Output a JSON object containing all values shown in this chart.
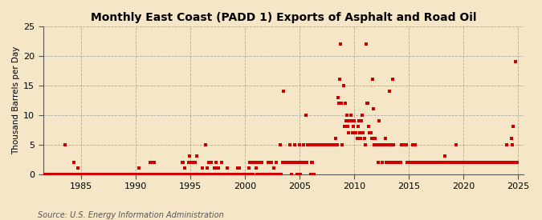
{
  "title": "Monthly East Coast (PADD 1) Exports of Asphalt and Road Oil",
  "ylabel": "Thousand Barrels per Day",
  "source": "Source: U.S. Energy Information Administration",
  "background_color": "#f5e6c8",
  "plot_background_color": "#f5e6c8",
  "marker_color": "#cc0000",
  "marker_size": 5,
  "xlim": [
    1981.5,
    2025.5
  ],
  "ylim": [
    0,
    25
  ],
  "yticks": [
    0,
    5,
    10,
    15,
    20,
    25
  ],
  "xticks": [
    1985,
    1990,
    1995,
    2000,
    2005,
    2010,
    2015,
    2020,
    2025
  ],
  "data": [
    [
      1981.583,
      0
    ],
    [
      1981.667,
      0
    ],
    [
      1981.75,
      0
    ],
    [
      1981.833,
      0
    ],
    [
      1981.917,
      0
    ],
    [
      1982.0,
      0
    ],
    [
      1982.083,
      0
    ],
    [
      1982.167,
      0
    ],
    [
      1982.25,
      0
    ],
    [
      1982.333,
      0
    ],
    [
      1982.417,
      0
    ],
    [
      1982.5,
      0
    ],
    [
      1982.583,
      0
    ],
    [
      1982.667,
      0
    ],
    [
      1982.75,
      0
    ],
    [
      1982.833,
      0
    ],
    [
      1982.917,
      0
    ],
    [
      1983.0,
      0
    ],
    [
      1983.083,
      0
    ],
    [
      1983.167,
      0
    ],
    [
      1983.25,
      0
    ],
    [
      1983.333,
      0
    ],
    [
      1983.417,
      0
    ],
    [
      1983.5,
      5
    ],
    [
      1983.583,
      0
    ],
    [
      1983.667,
      0
    ],
    [
      1983.75,
      0
    ],
    [
      1983.833,
      0
    ],
    [
      1983.917,
      0
    ],
    [
      1984.0,
      0
    ],
    [
      1984.083,
      0
    ],
    [
      1984.167,
      0
    ],
    [
      1984.25,
      0
    ],
    [
      1984.333,
      2
    ],
    [
      1984.417,
      0
    ],
    [
      1984.5,
      0
    ],
    [
      1984.583,
      0
    ],
    [
      1984.667,
      1
    ],
    [
      1984.75,
      0
    ],
    [
      1984.833,
      0
    ],
    [
      1984.917,
      0
    ],
    [
      1985.0,
      0
    ],
    [
      1985.083,
      0
    ],
    [
      1985.167,
      0
    ],
    [
      1985.25,
      0
    ],
    [
      1985.333,
      0
    ],
    [
      1985.417,
      0
    ],
    [
      1985.5,
      0
    ],
    [
      1985.583,
      0
    ],
    [
      1985.667,
      0
    ],
    [
      1985.75,
      0
    ],
    [
      1985.833,
      0
    ],
    [
      1985.917,
      0
    ],
    [
      1986.0,
      0
    ],
    [
      1986.083,
      0
    ],
    [
      1986.167,
      0
    ],
    [
      1986.25,
      0
    ],
    [
      1986.333,
      0
    ],
    [
      1986.417,
      0
    ],
    [
      1986.5,
      0
    ],
    [
      1986.583,
      0
    ],
    [
      1986.667,
      0
    ],
    [
      1986.75,
      0
    ],
    [
      1986.833,
      0
    ],
    [
      1986.917,
      0
    ],
    [
      1987.0,
      0
    ],
    [
      1987.083,
      0
    ],
    [
      1987.167,
      0
    ],
    [
      1987.25,
      0
    ],
    [
      1987.333,
      0
    ],
    [
      1987.417,
      0
    ],
    [
      1987.5,
      0
    ],
    [
      1987.583,
      0
    ],
    [
      1987.667,
      0
    ],
    [
      1987.75,
      0
    ],
    [
      1987.833,
      0
    ],
    [
      1987.917,
      0
    ],
    [
      1988.0,
      0
    ],
    [
      1988.083,
      0
    ],
    [
      1988.167,
      0
    ],
    [
      1988.25,
      0
    ],
    [
      1988.333,
      0
    ],
    [
      1988.417,
      0
    ],
    [
      1988.5,
      0
    ],
    [
      1988.583,
      0
    ],
    [
      1988.667,
      0
    ],
    [
      1988.75,
      0
    ],
    [
      1988.833,
      0
    ],
    [
      1988.917,
      0
    ],
    [
      1989.0,
      0
    ],
    [
      1989.083,
      0
    ],
    [
      1989.167,
      0
    ],
    [
      1989.25,
      0
    ],
    [
      1989.333,
      0
    ],
    [
      1989.417,
      0
    ],
    [
      1989.5,
      0
    ],
    [
      1989.583,
      0
    ],
    [
      1989.667,
      0
    ],
    [
      1989.75,
      0
    ],
    [
      1989.833,
      0
    ],
    [
      1989.917,
      0
    ],
    [
      1990.0,
      0
    ],
    [
      1990.083,
      0
    ],
    [
      1990.167,
      0
    ],
    [
      1990.25,
      1
    ],
    [
      1990.333,
      0
    ],
    [
      1990.417,
      0
    ],
    [
      1990.5,
      0
    ],
    [
      1990.583,
      0
    ],
    [
      1990.667,
      0
    ],
    [
      1990.75,
      0
    ],
    [
      1990.833,
      0
    ],
    [
      1990.917,
      0
    ],
    [
      1991.0,
      0
    ],
    [
      1991.083,
      0
    ],
    [
      1991.167,
      0
    ],
    [
      1991.25,
      0
    ],
    [
      1991.333,
      2
    ],
    [
      1991.417,
      0
    ],
    [
      1991.5,
      0
    ],
    [
      1991.583,
      2
    ],
    [
      1991.667,
      2
    ],
    [
      1991.75,
      0
    ],
    [
      1991.833,
      0
    ],
    [
      1991.917,
      0
    ],
    [
      1992.0,
      0
    ],
    [
      1992.083,
      0
    ],
    [
      1992.167,
      0
    ],
    [
      1992.25,
      0
    ],
    [
      1992.333,
      0
    ],
    [
      1992.417,
      0
    ],
    [
      1992.5,
      0
    ],
    [
      1992.583,
      0
    ],
    [
      1992.667,
      0
    ],
    [
      1992.75,
      0
    ],
    [
      1992.833,
      0
    ],
    [
      1992.917,
      0
    ],
    [
      1993.0,
      0
    ],
    [
      1993.083,
      0
    ],
    [
      1993.167,
      0
    ],
    [
      1993.25,
      0
    ],
    [
      1993.333,
      0
    ],
    [
      1993.417,
      0
    ],
    [
      1993.5,
      0
    ],
    [
      1993.583,
      0
    ],
    [
      1993.667,
      0
    ],
    [
      1993.75,
      0
    ],
    [
      1993.833,
      0
    ],
    [
      1993.917,
      0
    ],
    [
      1994.0,
      0
    ],
    [
      1994.083,
      0
    ],
    [
      1994.167,
      0
    ],
    [
      1994.25,
      2
    ],
    [
      1994.333,
      2
    ],
    [
      1994.417,
      0
    ],
    [
      1994.5,
      1
    ],
    [
      1994.583,
      0
    ],
    [
      1994.667,
      0
    ],
    [
      1994.75,
      0
    ],
    [
      1994.833,
      2
    ],
    [
      1994.917,
      3
    ],
    [
      1995.0,
      0
    ],
    [
      1995.083,
      2
    ],
    [
      1995.167,
      0
    ],
    [
      1995.25,
      0
    ],
    [
      1995.333,
      2
    ],
    [
      1995.417,
      2
    ],
    [
      1995.5,
      0
    ],
    [
      1995.583,
      3
    ],
    [
      1995.667,
      0
    ],
    [
      1995.75,
      0
    ],
    [
      1995.833,
      0
    ],
    [
      1995.917,
      0
    ],
    [
      1996.0,
      0
    ],
    [
      1996.083,
      1
    ],
    [
      1996.167,
      0
    ],
    [
      1996.25,
      0
    ],
    [
      1996.333,
      0
    ],
    [
      1996.417,
      5
    ],
    [
      1996.5,
      1
    ],
    [
      1996.583,
      0
    ],
    [
      1996.667,
      2
    ],
    [
      1996.75,
      0
    ],
    [
      1996.833,
      0
    ],
    [
      1996.917,
      2
    ],
    [
      1997.0,
      0
    ],
    [
      1997.083,
      0
    ],
    [
      1997.167,
      1
    ],
    [
      1997.25,
      0
    ],
    [
      1997.333,
      2
    ],
    [
      1997.417,
      0
    ],
    [
      1997.5,
      1
    ],
    [
      1997.583,
      1
    ],
    [
      1997.667,
      0
    ],
    [
      1997.75,
      0
    ],
    [
      1997.833,
      2
    ],
    [
      1997.917,
      0
    ],
    [
      1998.0,
      0
    ],
    [
      1998.083,
      0
    ],
    [
      1998.167,
      0
    ],
    [
      1998.25,
      0
    ],
    [
      1998.333,
      1
    ],
    [
      1998.417,
      0
    ],
    [
      1998.5,
      0
    ],
    [
      1998.583,
      0
    ],
    [
      1998.667,
      0
    ],
    [
      1998.75,
      0
    ],
    [
      1998.833,
      0
    ],
    [
      1998.917,
      0
    ],
    [
      1999.0,
      0
    ],
    [
      1999.083,
      0
    ],
    [
      1999.167,
      0
    ],
    [
      1999.25,
      0
    ],
    [
      1999.333,
      1
    ],
    [
      1999.417,
      0
    ],
    [
      1999.5,
      1
    ],
    [
      1999.583,
      0
    ],
    [
      1999.667,
      0
    ],
    [
      1999.75,
      0
    ],
    [
      1999.833,
      0
    ],
    [
      1999.917,
      0
    ],
    [
      2000.0,
      0
    ],
    [
      2000.083,
      0
    ],
    [
      2000.167,
      0
    ],
    [
      2000.25,
      0
    ],
    [
      2000.333,
      1
    ],
    [
      2000.417,
      2
    ],
    [
      2000.5,
      0
    ],
    [
      2000.583,
      2
    ],
    [
      2000.667,
      2
    ],
    [
      2000.75,
      0
    ],
    [
      2000.833,
      2
    ],
    [
      2000.917,
      2
    ],
    [
      2001.0,
      1
    ],
    [
      2001.083,
      0
    ],
    [
      2001.167,
      2
    ],
    [
      2001.25,
      2
    ],
    [
      2001.333,
      0
    ],
    [
      2001.417,
      2
    ],
    [
      2001.5,
      2
    ],
    [
      2001.583,
      0
    ],
    [
      2001.667,
      0
    ],
    [
      2001.75,
      0
    ],
    [
      2001.833,
      0
    ],
    [
      2001.917,
      0
    ],
    [
      2002.0,
      0
    ],
    [
      2002.083,
      2
    ],
    [
      2002.167,
      0
    ],
    [
      2002.25,
      0
    ],
    [
      2002.333,
      0
    ],
    [
      2002.417,
      2
    ],
    [
      2002.5,
      0
    ],
    [
      2002.583,
      0
    ],
    [
      2002.667,
      1
    ],
    [
      2002.75,
      0
    ],
    [
      2002.833,
      2
    ],
    [
      2002.917,
      0
    ],
    [
      2003.0,
      0
    ],
    [
      2003.083,
      0
    ],
    [
      2003.167,
      0
    ],
    [
      2003.25,
      5
    ],
    [
      2003.333,
      0
    ],
    [
      2003.417,
      2
    ],
    [
      2003.5,
      14
    ],
    [
      2003.583,
      2
    ],
    [
      2003.667,
      2
    ],
    [
      2003.75,
      2
    ],
    [
      2003.833,
      2
    ],
    [
      2003.917,
      2
    ],
    [
      2004.0,
      2
    ],
    [
      2004.083,
      5
    ],
    [
      2004.167,
      2
    ],
    [
      2004.25,
      0
    ],
    [
      2004.333,
      2
    ],
    [
      2004.417,
      2
    ],
    [
      2004.5,
      2
    ],
    [
      2004.583,
      5
    ],
    [
      2004.667,
      2
    ],
    [
      2004.75,
      0
    ],
    [
      2004.833,
      2
    ],
    [
      2004.917,
      2
    ],
    [
      2005.0,
      5
    ],
    [
      2005.083,
      0
    ],
    [
      2005.167,
      2
    ],
    [
      2005.25,
      2
    ],
    [
      2005.333,
      5
    ],
    [
      2005.417,
      2
    ],
    [
      2005.5,
      2
    ],
    [
      2005.583,
      10
    ],
    [
      2005.667,
      2
    ],
    [
      2005.75,
      5
    ],
    [
      2005.833,
      5
    ],
    [
      2005.917,
      5
    ],
    [
      2006.0,
      0
    ],
    [
      2006.083,
      2
    ],
    [
      2006.167,
      2
    ],
    [
      2006.25,
      5
    ],
    [
      2006.333,
      0
    ],
    [
      2006.417,
      5
    ],
    [
      2006.5,
      5
    ],
    [
      2006.583,
      5
    ],
    [
      2006.667,
      5
    ],
    [
      2006.75,
      5
    ],
    [
      2006.833,
      5
    ],
    [
      2006.917,
      5
    ],
    [
      2007.0,
      5
    ],
    [
      2007.083,
      5
    ],
    [
      2007.167,
      5
    ],
    [
      2007.25,
      5
    ],
    [
      2007.333,
      5
    ],
    [
      2007.417,
      5
    ],
    [
      2007.5,
      5
    ],
    [
      2007.583,
      5
    ],
    [
      2007.667,
      5
    ],
    [
      2007.75,
      5
    ],
    [
      2007.833,
      5
    ],
    [
      2007.917,
      5
    ],
    [
      2008.0,
      5
    ],
    [
      2008.083,
      5
    ],
    [
      2008.167,
      5
    ],
    [
      2008.25,
      5
    ],
    [
      2008.333,
      6
    ],
    [
      2008.417,
      5
    ],
    [
      2008.5,
      13
    ],
    [
      2008.583,
      12
    ],
    [
      2008.667,
      16
    ],
    [
      2008.75,
      22
    ],
    [
      2008.833,
      12
    ],
    [
      2008.917,
      5
    ],
    [
      2009.0,
      15
    ],
    [
      2009.083,
      8
    ],
    [
      2009.167,
      12
    ],
    [
      2009.25,
      9
    ],
    [
      2009.333,
      10
    ],
    [
      2009.417,
      8
    ],
    [
      2009.5,
      7
    ],
    [
      2009.583,
      9
    ],
    [
      2009.667,
      10
    ],
    [
      2009.75,
      9
    ],
    [
      2009.833,
      7
    ],
    [
      2009.917,
      8
    ],
    [
      2010.0,
      9
    ],
    [
      2010.083,
      7
    ],
    [
      2010.167,
      7
    ],
    [
      2010.25,
      6
    ],
    [
      2010.333,
      8
    ],
    [
      2010.417,
      9
    ],
    [
      2010.5,
      7
    ],
    [
      2010.583,
      6
    ],
    [
      2010.667,
      9
    ],
    [
      2010.75,
      10
    ],
    [
      2010.833,
      7
    ],
    [
      2010.917,
      6
    ],
    [
      2011.0,
      5
    ],
    [
      2011.083,
      22
    ],
    [
      2011.167,
      12
    ],
    [
      2011.25,
      12
    ],
    [
      2011.333,
      8
    ],
    [
      2011.417,
      7
    ],
    [
      2011.5,
      7
    ],
    [
      2011.583,
      6
    ],
    [
      2011.667,
      16
    ],
    [
      2011.75,
      11
    ],
    [
      2011.833,
      5
    ],
    [
      2011.917,
      6
    ],
    [
      2012.0,
      5
    ],
    [
      2012.083,
      5
    ],
    [
      2012.167,
      2
    ],
    [
      2012.25,
      9
    ],
    [
      2012.333,
      5
    ],
    [
      2012.417,
      5
    ],
    [
      2012.5,
      5
    ],
    [
      2012.583,
      2
    ],
    [
      2012.667,
      5
    ],
    [
      2012.75,
      5
    ],
    [
      2012.833,
      6
    ],
    [
      2012.917,
      2
    ],
    [
      2013.0,
      5
    ],
    [
      2013.083,
      2
    ],
    [
      2013.167,
      2
    ],
    [
      2013.25,
      14
    ],
    [
      2013.333,
      5
    ],
    [
      2013.417,
      2
    ],
    [
      2013.5,
      16
    ],
    [
      2013.583,
      5
    ],
    [
      2013.667,
      2
    ],
    [
      2013.75,
      2
    ],
    [
      2013.833,
      2
    ],
    [
      2013.917,
      2
    ],
    [
      2014.0,
      2
    ],
    [
      2014.083,
      2
    ],
    [
      2014.167,
      2
    ],
    [
      2014.25,
      2
    ],
    [
      2014.333,
      5
    ],
    [
      2014.417,
      5
    ],
    [
      2014.5,
      5
    ],
    [
      2014.583,
      5
    ],
    [
      2014.667,
      5
    ],
    [
      2014.75,
      5
    ],
    [
      2014.833,
      2
    ],
    [
      2014.917,
      2
    ],
    [
      2015.0,
      2
    ],
    [
      2015.083,
      2
    ],
    [
      2015.167,
      2
    ],
    [
      2015.25,
      2
    ],
    [
      2015.333,
      5
    ],
    [
      2015.417,
      2
    ],
    [
      2015.5,
      2
    ],
    [
      2015.583,
      5
    ],
    [
      2015.667,
      2
    ],
    [
      2015.75,
      2
    ],
    [
      2015.833,
      2
    ],
    [
      2015.917,
      2
    ],
    [
      2016.0,
      2
    ],
    [
      2016.083,
      2
    ],
    [
      2016.167,
      2
    ],
    [
      2016.25,
      2
    ],
    [
      2016.333,
      2
    ],
    [
      2016.417,
      2
    ],
    [
      2016.5,
      2
    ],
    [
      2016.583,
      2
    ],
    [
      2016.667,
      2
    ],
    [
      2016.75,
      2
    ],
    [
      2016.833,
      2
    ],
    [
      2016.917,
      2
    ],
    [
      2017.0,
      2
    ],
    [
      2017.083,
      2
    ],
    [
      2017.167,
      2
    ],
    [
      2017.25,
      2
    ],
    [
      2017.333,
      2
    ],
    [
      2017.417,
      2
    ],
    [
      2017.5,
      2
    ],
    [
      2017.583,
      2
    ],
    [
      2017.667,
      2
    ],
    [
      2017.75,
      2
    ],
    [
      2017.833,
      2
    ],
    [
      2017.917,
      2
    ],
    [
      2018.0,
      2
    ],
    [
      2018.083,
      2
    ],
    [
      2018.167,
      2
    ],
    [
      2018.25,
      2
    ],
    [
      2018.333,
      3
    ],
    [
      2018.417,
      2
    ],
    [
      2018.5,
      2
    ],
    [
      2018.583,
      2
    ],
    [
      2018.667,
      2
    ],
    [
      2018.75,
      2
    ],
    [
      2018.833,
      2
    ],
    [
      2018.917,
      2
    ],
    [
      2019.0,
      2
    ],
    [
      2019.083,
      2
    ],
    [
      2019.167,
      2
    ],
    [
      2019.25,
      2
    ],
    [
      2019.333,
      5
    ],
    [
      2019.417,
      2
    ],
    [
      2019.5,
      2
    ],
    [
      2019.583,
      2
    ],
    [
      2019.667,
      2
    ],
    [
      2019.75,
      2
    ],
    [
      2019.833,
      2
    ],
    [
      2019.917,
      2
    ],
    [
      2020.0,
      2
    ],
    [
      2020.083,
      2
    ],
    [
      2020.167,
      2
    ],
    [
      2020.25,
      2
    ],
    [
      2020.333,
      2
    ],
    [
      2020.417,
      2
    ],
    [
      2020.5,
      2
    ],
    [
      2020.583,
      2
    ],
    [
      2020.667,
      2
    ],
    [
      2020.75,
      2
    ],
    [
      2020.833,
      2
    ],
    [
      2020.917,
      2
    ],
    [
      2021.0,
      2
    ],
    [
      2021.083,
      2
    ],
    [
      2021.167,
      2
    ],
    [
      2021.25,
      2
    ],
    [
      2021.333,
      2
    ],
    [
      2021.417,
      2
    ],
    [
      2021.5,
      2
    ],
    [
      2021.583,
      2
    ],
    [
      2021.667,
      2
    ],
    [
      2021.75,
      2
    ],
    [
      2021.833,
      2
    ],
    [
      2021.917,
      2
    ],
    [
      2022.0,
      2
    ],
    [
      2022.083,
      2
    ],
    [
      2022.167,
      2
    ],
    [
      2022.25,
      2
    ],
    [
      2022.333,
      2
    ],
    [
      2022.417,
      2
    ],
    [
      2022.5,
      2
    ],
    [
      2022.583,
      2
    ],
    [
      2022.667,
      2
    ],
    [
      2022.75,
      2
    ],
    [
      2022.833,
      2
    ],
    [
      2022.917,
      2
    ],
    [
      2023.0,
      2
    ],
    [
      2023.083,
      2
    ],
    [
      2023.167,
      2
    ],
    [
      2023.25,
      2
    ],
    [
      2023.333,
      2
    ],
    [
      2023.417,
      2
    ],
    [
      2023.5,
      2
    ],
    [
      2023.583,
      2
    ],
    [
      2023.667,
      2
    ],
    [
      2023.75,
      2
    ],
    [
      2023.833,
      2
    ],
    [
      2023.917,
      2
    ],
    [
      2024.0,
      5
    ],
    [
      2024.083,
      2
    ],
    [
      2024.167,
      2
    ],
    [
      2024.25,
      2
    ],
    [
      2024.333,
      2
    ],
    [
      2024.417,
      6
    ],
    [
      2024.5,
      5
    ],
    [
      2024.583,
      8
    ],
    [
      2024.667,
      2
    ],
    [
      2024.75,
      19
    ],
    [
      2024.833,
      2
    ],
    [
      2024.917,
      2
    ]
  ]
}
